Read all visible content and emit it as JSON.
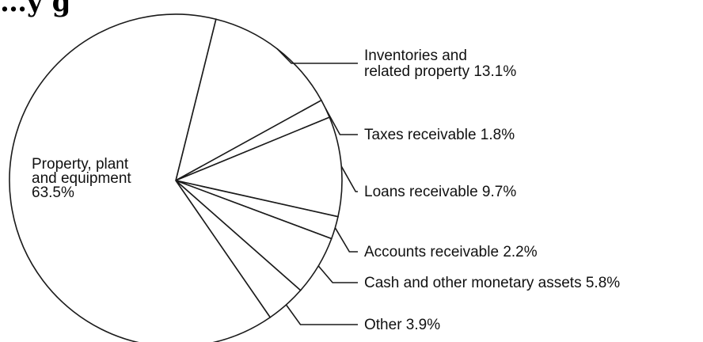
{
  "chart_data": {
    "type": "pie",
    "title": "…y        g",
    "slices": [
      {
        "key": "inventories",
        "label_lines": [
          "Inventories and",
          "related property 13.1%"
        ],
        "value": 13.1
      },
      {
        "key": "taxes",
        "label_lines": [
          "Taxes receivable 1.8%"
        ],
        "value": 1.8
      },
      {
        "key": "loans",
        "label_lines": [
          "Loans receivable 9.7%"
        ],
        "value": 9.7
      },
      {
        "key": "accounts",
        "label_lines": [
          "Accounts receivable 2.2%"
        ],
        "value": 2.2
      },
      {
        "key": "cash",
        "label_lines": [
          "Cash and other monetary assets 5.8%"
        ],
        "value": 5.8
      },
      {
        "key": "other",
        "label_lines": [
          "Other 3.9%"
        ],
        "value": 3.9
      },
      {
        "key": "ppe",
        "label_lines": [
          "Property, plant",
          "and equipment",
          "63.5%"
        ],
        "value": 63.5
      }
    ],
    "start_angle_deg": 14,
    "direction": "clockwise",
    "legend": "none",
    "colors": {
      "fill": "#ffffff",
      "stroke": "#1a1a1a",
      "text": "#111111"
    }
  }
}
